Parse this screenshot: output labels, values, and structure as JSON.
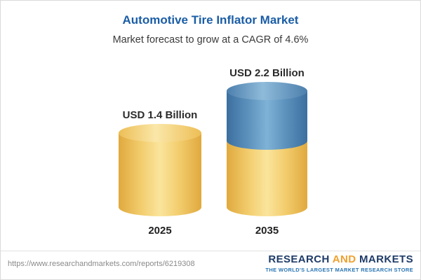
{
  "chart_data": {
    "type": "bar",
    "title": "Automotive Tire Inflator Market",
    "subtitle": "Market forecast to grow at a CAGR of 4.6%",
    "categories": [
      "2025",
      "2035"
    ],
    "values": [
      1.4,
      2.2
    ],
    "unit": "USD Billion",
    "value_labels": [
      "USD 1.4 Billion",
      "USD 2.2 Billion"
    ],
    "cagr_percent": 4.6,
    "legend": false,
    "grid": false,
    "colors": {
      "title": "#1A5DA6",
      "bar_base": "#F4CB60",
      "bar_growth_segment": "#4E86B4",
      "label_text": "#2B2B2B"
    },
    "notes": "2035 bar is a stacked cylinder: yellow base portion equals 2025 value, blue top segment shows growth to 2.2"
  },
  "footer": {
    "url": "https://www.researchandmarkets.com/reports/6219308",
    "logo": {
      "word1": "RESEARCH",
      "word2": "AND",
      "word3": "MARKETS",
      "tagline": "THE WORLD'S LARGEST MARKET RESEARCH STORE"
    }
  }
}
